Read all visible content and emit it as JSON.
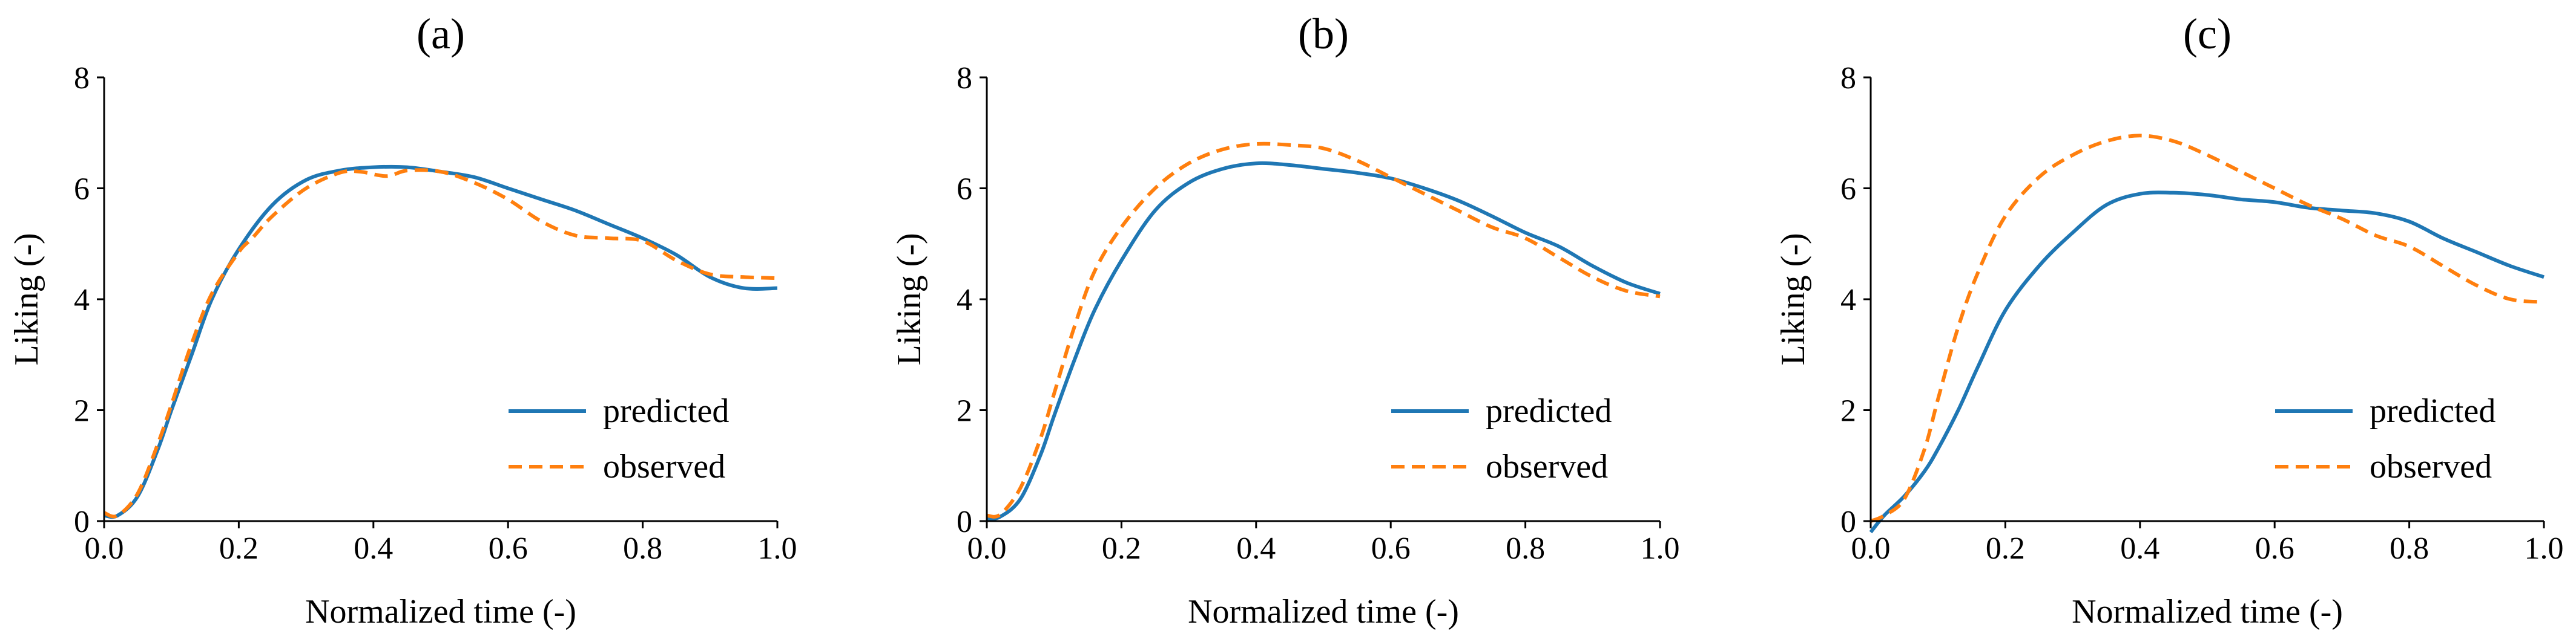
{
  "chart_data": [
    {
      "type": "line",
      "title": "(a)",
      "xlabel": "Normalized time (-)",
      "ylabel": "Liking (-)",
      "xlim": [
        0.0,
        1.0
      ],
      "ylim": [
        0,
        8
      ],
      "xticks": [
        "0.0",
        "0.2",
        "0.4",
        "0.6",
        "0.8",
        "1.0"
      ],
      "yticks": [
        "0",
        "2",
        "4",
        "6",
        "8"
      ],
      "legend_position": "lower-right",
      "series": [
        {
          "name": "predicted",
          "color": "#1f77b4",
          "style": "solid",
          "x": [
            0.0,
            0.02,
            0.05,
            0.08,
            0.1,
            0.13,
            0.16,
            0.2,
            0.25,
            0.3,
            0.35,
            0.4,
            0.45,
            0.5,
            0.55,
            0.6,
            0.65,
            0.7,
            0.75,
            0.8,
            0.85,
            0.9,
            0.95,
            1.0
          ],
          "y": [
            0.1,
            0.1,
            0.45,
            1.3,
            2.0,
            3.0,
            4.0,
            4.9,
            5.7,
            6.15,
            6.32,
            6.38,
            6.38,
            6.3,
            6.2,
            6.0,
            5.8,
            5.6,
            5.35,
            5.1,
            4.8,
            4.4,
            4.2,
            4.2
          ]
        },
        {
          "name": "observed",
          "color": "#ff7f0e",
          "style": "dashed",
          "x": [
            0.0,
            0.02,
            0.05,
            0.08,
            0.1,
            0.13,
            0.16,
            0.2,
            0.22,
            0.25,
            0.3,
            0.35,
            0.38,
            0.42,
            0.45,
            0.5,
            0.55,
            0.6,
            0.65,
            0.7,
            0.75,
            0.8,
            0.85,
            0.9,
            0.95,
            1.0
          ],
          "y": [
            0.15,
            0.1,
            0.5,
            1.4,
            2.1,
            3.2,
            4.1,
            4.85,
            5.1,
            5.5,
            6.0,
            6.28,
            6.3,
            6.22,
            6.32,
            6.3,
            6.1,
            5.8,
            5.4,
            5.15,
            5.1,
            5.05,
            4.7,
            4.45,
            4.4,
            4.38
          ]
        }
      ]
    },
    {
      "type": "line",
      "title": "(b)",
      "xlabel": "Normalized time (-)",
      "ylabel": "Liking (-)",
      "xlim": [
        0.0,
        1.0
      ],
      "ylim": [
        0,
        8
      ],
      "xticks": [
        "0.0",
        "0.2",
        "0.4",
        "0.6",
        "0.8",
        "1.0"
      ],
      "yticks": [
        "0",
        "2",
        "4",
        "6",
        "8"
      ],
      "legend_position": "lower-right",
      "series": [
        {
          "name": "predicted",
          "color": "#1f77b4",
          "style": "solid",
          "x": [
            0.0,
            0.02,
            0.05,
            0.08,
            0.1,
            0.13,
            0.16,
            0.2,
            0.25,
            0.3,
            0.35,
            0.4,
            0.45,
            0.5,
            0.55,
            0.6,
            0.65,
            0.7,
            0.75,
            0.8,
            0.85,
            0.9,
            0.95,
            1.0
          ],
          "y": [
            0.05,
            0.08,
            0.4,
            1.2,
            1.9,
            2.9,
            3.8,
            4.7,
            5.6,
            6.1,
            6.35,
            6.45,
            6.42,
            6.35,
            6.28,
            6.18,
            6.0,
            5.78,
            5.5,
            5.2,
            4.95,
            4.6,
            4.3,
            4.1
          ]
        },
        {
          "name": "observed",
          "color": "#ff7f0e",
          "style": "dashed",
          "x": [
            0.0,
            0.02,
            0.05,
            0.08,
            0.1,
            0.13,
            0.16,
            0.2,
            0.25,
            0.3,
            0.35,
            0.4,
            0.45,
            0.5,
            0.55,
            0.6,
            0.65,
            0.7,
            0.75,
            0.8,
            0.85,
            0.9,
            0.95,
            1.0
          ],
          "y": [
            0.1,
            0.12,
            0.6,
            1.5,
            2.3,
            3.5,
            4.5,
            5.3,
            6.0,
            6.45,
            6.7,
            6.8,
            6.78,
            6.72,
            6.5,
            6.2,
            5.9,
            5.6,
            5.3,
            5.1,
            4.75,
            4.4,
            4.15,
            4.05
          ]
        }
      ]
    },
    {
      "type": "line",
      "title": "(c)",
      "xlabel": "Normalized time (-)",
      "ylabel": "Liking (-)",
      "xlim": [
        0.0,
        1.0
      ],
      "ylim": [
        0,
        8
      ],
      "xticks": [
        "0.0",
        "0.2",
        "0.4",
        "0.6",
        "0.8",
        "1.0"
      ],
      "yticks": [
        "0",
        "2",
        "4",
        "6",
        "8"
      ],
      "legend_position": "lower-right",
      "series": [
        {
          "name": "predicted",
          "color": "#1f77b4",
          "style": "solid",
          "x": [
            0.0,
            0.02,
            0.05,
            0.08,
            0.1,
            0.13,
            0.16,
            0.2,
            0.25,
            0.3,
            0.35,
            0.4,
            0.45,
            0.5,
            0.55,
            0.6,
            0.65,
            0.7,
            0.75,
            0.8,
            0.85,
            0.9,
            0.95,
            1.0
          ],
          "y": [
            -0.2,
            0.1,
            0.45,
            0.9,
            1.3,
            2.0,
            2.8,
            3.8,
            4.6,
            5.2,
            5.7,
            5.9,
            5.92,
            5.88,
            5.8,
            5.75,
            5.65,
            5.6,
            5.55,
            5.4,
            5.1,
            4.85,
            4.6,
            4.4
          ]
        },
        {
          "name": "observed",
          "color": "#ff7f0e",
          "style": "dashed",
          "x": [
            0.0,
            0.02,
            0.05,
            0.08,
            0.1,
            0.13,
            0.16,
            0.2,
            0.25,
            0.3,
            0.35,
            0.4,
            0.45,
            0.5,
            0.55,
            0.6,
            0.65,
            0.7,
            0.75,
            0.8,
            0.85,
            0.9,
            0.95,
            1.0
          ],
          "y": [
            0.0,
            0.1,
            0.4,
            1.3,
            2.2,
            3.5,
            4.5,
            5.5,
            6.2,
            6.6,
            6.85,
            6.95,
            6.85,
            6.6,
            6.3,
            6.0,
            5.7,
            5.45,
            5.15,
            4.95,
            4.6,
            4.25,
            4.0,
            3.95
          ]
        }
      ]
    }
  ]
}
